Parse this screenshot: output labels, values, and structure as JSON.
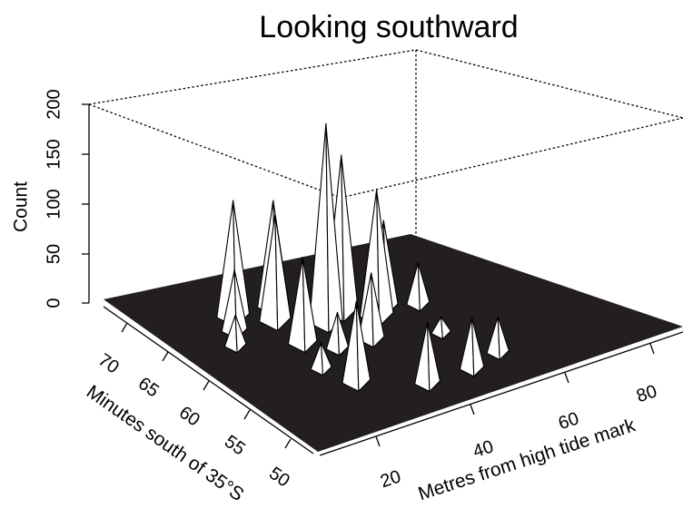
{
  "chart_data": {
    "type": "surface",
    "title": "Looking southward",
    "zlabel": "Count",
    "xlabel": "Metres from high tide mark",
    "ylabel": "Minutes south of 35°S",
    "x_ticks": [
      "20",
      "40",
      "60",
      "80"
    ],
    "y_ticks": [
      "70",
      "65",
      "60",
      "55",
      "50"
    ],
    "z_ticks": [
      "0",
      "50",
      "100",
      "150",
      "200"
    ],
    "xlim": [
      10,
      90
    ],
    "ylim": [
      48,
      74
    ],
    "zlim": [
      0,
      200
    ],
    "colors": {
      "surface": "#ffffff",
      "shadow": "#231f20",
      "lines": "#000000"
    },
    "peaks": [
      {
        "x": 44,
        "y": 64,
        "count": 198
      },
      {
        "x": 50,
        "y": 65,
        "count": 155
      },
      {
        "x": 54,
        "y": 63,
        "count": 125
      },
      {
        "x": 30,
        "y": 68,
        "count": 115
      },
      {
        "x": 36,
        "y": 66,
        "count": 105
      },
      {
        "x": 40,
        "y": 68,
        "count": 105
      },
      {
        "x": 34,
        "y": 62,
        "count": 85
      },
      {
        "x": 58,
        "y": 64,
        "count": 85
      },
      {
        "x": 26,
        "y": 66,
        "count": 60
      },
      {
        "x": 46,
        "y": 60,
        "count": 65
      },
      {
        "x": 64,
        "y": 63,
        "count": 40
      },
      {
        "x": 22,
        "y": 64,
        "count": 30
      },
      {
        "x": 38,
        "y": 60,
        "count": 35
      },
      {
        "x": 30,
        "y": 58,
        "count": 25
      },
      {
        "x": 58,
        "y": 58,
        "count": 15
      },
      {
        "x": 32,
        "y": 55,
        "count": 80
      },
      {
        "x": 42,
        "y": 52,
        "count": 60
      },
      {
        "x": 52,
        "y": 52,
        "count": 50
      },
      {
        "x": 60,
        "y": 53,
        "count": 35
      }
    ]
  }
}
